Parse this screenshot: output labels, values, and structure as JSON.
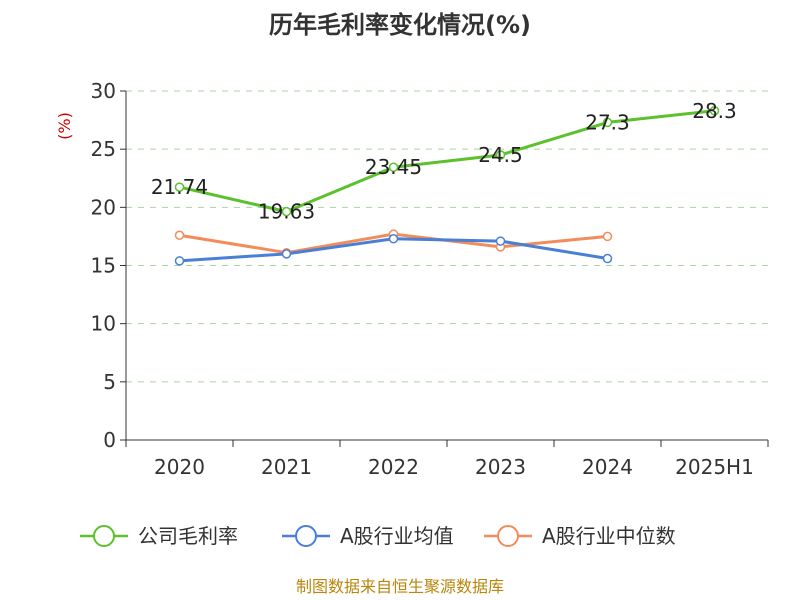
{
  "chart_data": {
    "type": "line",
    "title": "历年毛利率变化情况(%)",
    "ylabel": "(%)",
    "categories": [
      "2020",
      "2021",
      "2022",
      "2023",
      "2024",
      "2025H1"
    ],
    "ylim": [
      0,
      30
    ],
    "yticks": [
      "0",
      "5",
      "10",
      "15",
      "20",
      "25",
      "30"
    ],
    "grid": true,
    "legend_position": "bottom",
    "series": [
      {
        "name": "公司毛利率",
        "color": "#5cc12e",
        "values": [
          21.74,
          19.63,
          23.45,
          24.5,
          27.3,
          28.3
        ],
        "labels": [
          "21.74",
          "19.63",
          "23.45",
          "24.5",
          "27.3",
          "28.3"
        ]
      },
      {
        "name": "A股行业均值",
        "color": "#4a7fd6",
        "values": [
          15.4,
          16.0,
          17.3,
          17.1,
          15.6,
          null
        ]
      },
      {
        "name": "A股行业中位数",
        "color": "#f28c5a",
        "values": [
          17.6,
          16.1,
          17.7,
          16.6,
          17.5,
          null
        ]
      }
    ],
    "source": "制图数据来自恒生聚源数据库"
  }
}
